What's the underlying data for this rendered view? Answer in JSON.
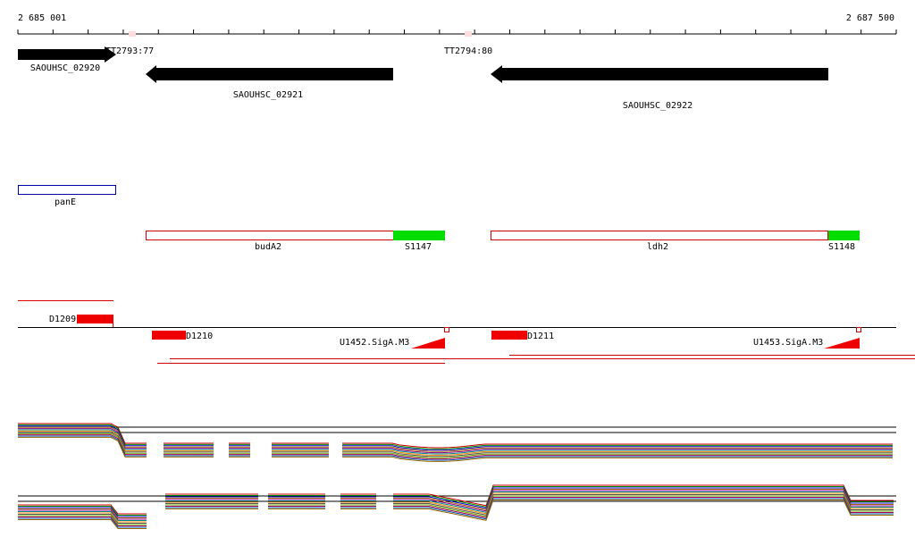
{
  "ruler": {
    "start": "2 685 001",
    "end": "2 687 500"
  },
  "terminators": [
    "TT2793:77",
    "TT2794:80"
  ],
  "genes": [
    {
      "label": "SAOUHSC_02920"
    },
    {
      "label": "SAOUHSC_02921"
    },
    {
      "label": "SAOUHSC_02922"
    }
  ],
  "annotations": [
    "panE",
    "budA2",
    "S1147",
    "ldh2",
    "S1148"
  ],
  "segments": [
    "D1209",
    "D1210",
    "D1211"
  ],
  "promoters": [
    "U1452.SigA.M3",
    "U1453.SigA.M3"
  ]
}
